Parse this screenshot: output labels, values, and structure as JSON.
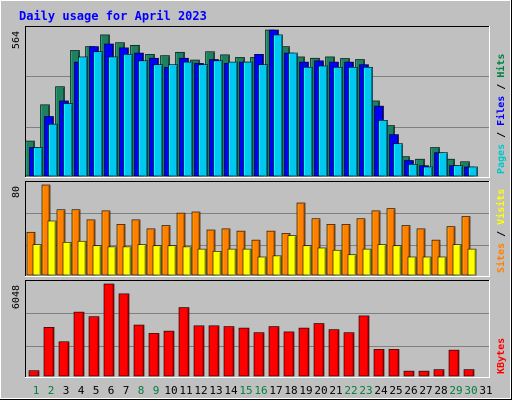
{
  "chart_data": {
    "title": "Daily usage for April 2023",
    "type": "bar",
    "days": [
      "1",
      "2",
      "3",
      "4",
      "5",
      "6",
      "7",
      "8",
      "9",
      "10",
      "11",
      "12",
      "13",
      "14",
      "15",
      "16",
      "17",
      "18",
      "19",
      "20",
      "21",
      "22",
      "23",
      "24",
      "25",
      "26",
      "27",
      "28",
      "29",
      "30",
      "31"
    ],
    "weekend_days": [
      1,
      2,
      8,
      9,
      15,
      16,
      22,
      23,
      29,
      30
    ],
    "panels": [
      {
        "id": "hits-files-pages",
        "max_label": "564",
        "ymax": 564,
        "legend": [
          "Pages",
          "Files",
          "Hits"
        ],
        "legend_colors": [
          "#00c8c8",
          "#0000ff",
          "#008040"
        ],
        "series": [
          {
            "name": "Hits",
            "color": "#1e8060",
            "values": [
              135,
              275,
              345,
              485,
              500,
              545,
              515,
              505,
              470,
              465,
              478,
              448,
              480,
              468,
              458,
              458,
              564,
              500,
              460,
              455,
              460,
              454,
              450,
              290,
              195,
              75,
              65,
              110,
              65,
              55,
              0
            ]
          },
          {
            "name": "Files",
            "color": "#0000ff",
            "values": [
              110,
              230,
              290,
              440,
              500,
              510,
              495,
              475,
              455,
              420,
              455,
              435,
              450,
              435,
              440,
              470,
              564,
              475,
              440,
              445,
              440,
              440,
              430,
              270,
              160,
              60,
              40,
              90,
              40,
              35,
              0
            ]
          },
          {
            "name": "Pages",
            "color": "#00c8f0",
            "values": [
              110,
              200,
              280,
              460,
              480,
              460,
              470,
              445,
              430,
              430,
              440,
              430,
              445,
              440,
              440,
              430,
              545,
              475,
              420,
              425,
              420,
              420,
              420,
              215,
              125,
              45,
              35,
              90,
              40,
              35,
              0
            ]
          }
        ]
      },
      {
        "id": "visits-sites",
        "max_label": "80",
        "ymax": 80,
        "legend": [
          "Sites",
          "Visits"
        ],
        "legend_colors": [
          "#ff8000",
          "#ffff00"
        ],
        "series": [
          {
            "name": "Visits",
            "color": "#ff8000",
            "values": [
              38,
              80,
              58,
              58,
              49,
              57,
              45,
              49,
              41,
              44,
              55,
              56,
              40,
              41,
              39,
              31,
              39,
              37,
              64,
              50,
              45,
              45,
              50,
              57,
              59,
              44,
              41,
              31,
              43,
              52,
              0
            ]
          },
          {
            "name": "Sites",
            "color": "#ffff00",
            "values": [
              27,
              48,
              29,
              30,
              26,
              25,
              25,
              27,
              26,
              26,
              25,
              23,
              21,
              23,
              23,
              16,
              17,
              35,
              26,
              24,
              22,
              18,
              23,
              27,
              26,
              16,
              16,
              16,
              27,
              23,
              0
            ]
          }
        ]
      },
      {
        "id": "kbytes",
        "max_label": "6048",
        "ymax": 6048,
        "legend": [
          "KBytes"
        ],
        "legend_colors": [
          "#ff0000"
        ],
        "series": [
          {
            "name": "KBytes",
            "color": "#ff0000",
            "values": [
              350,
              3200,
              2250,
              4200,
              3900,
              6048,
              5400,
              3350,
              2800,
              2950,
              4500,
              3300,
              3300,
              3250,
              3150,
              2850,
              3250,
              2900,
              3150,
              3450,
              3050,
              2850,
              3950,
              1750,
              1750,
              320,
              320,
              420,
              1700,
              420,
              0
            ]
          }
        ]
      }
    ]
  }
}
